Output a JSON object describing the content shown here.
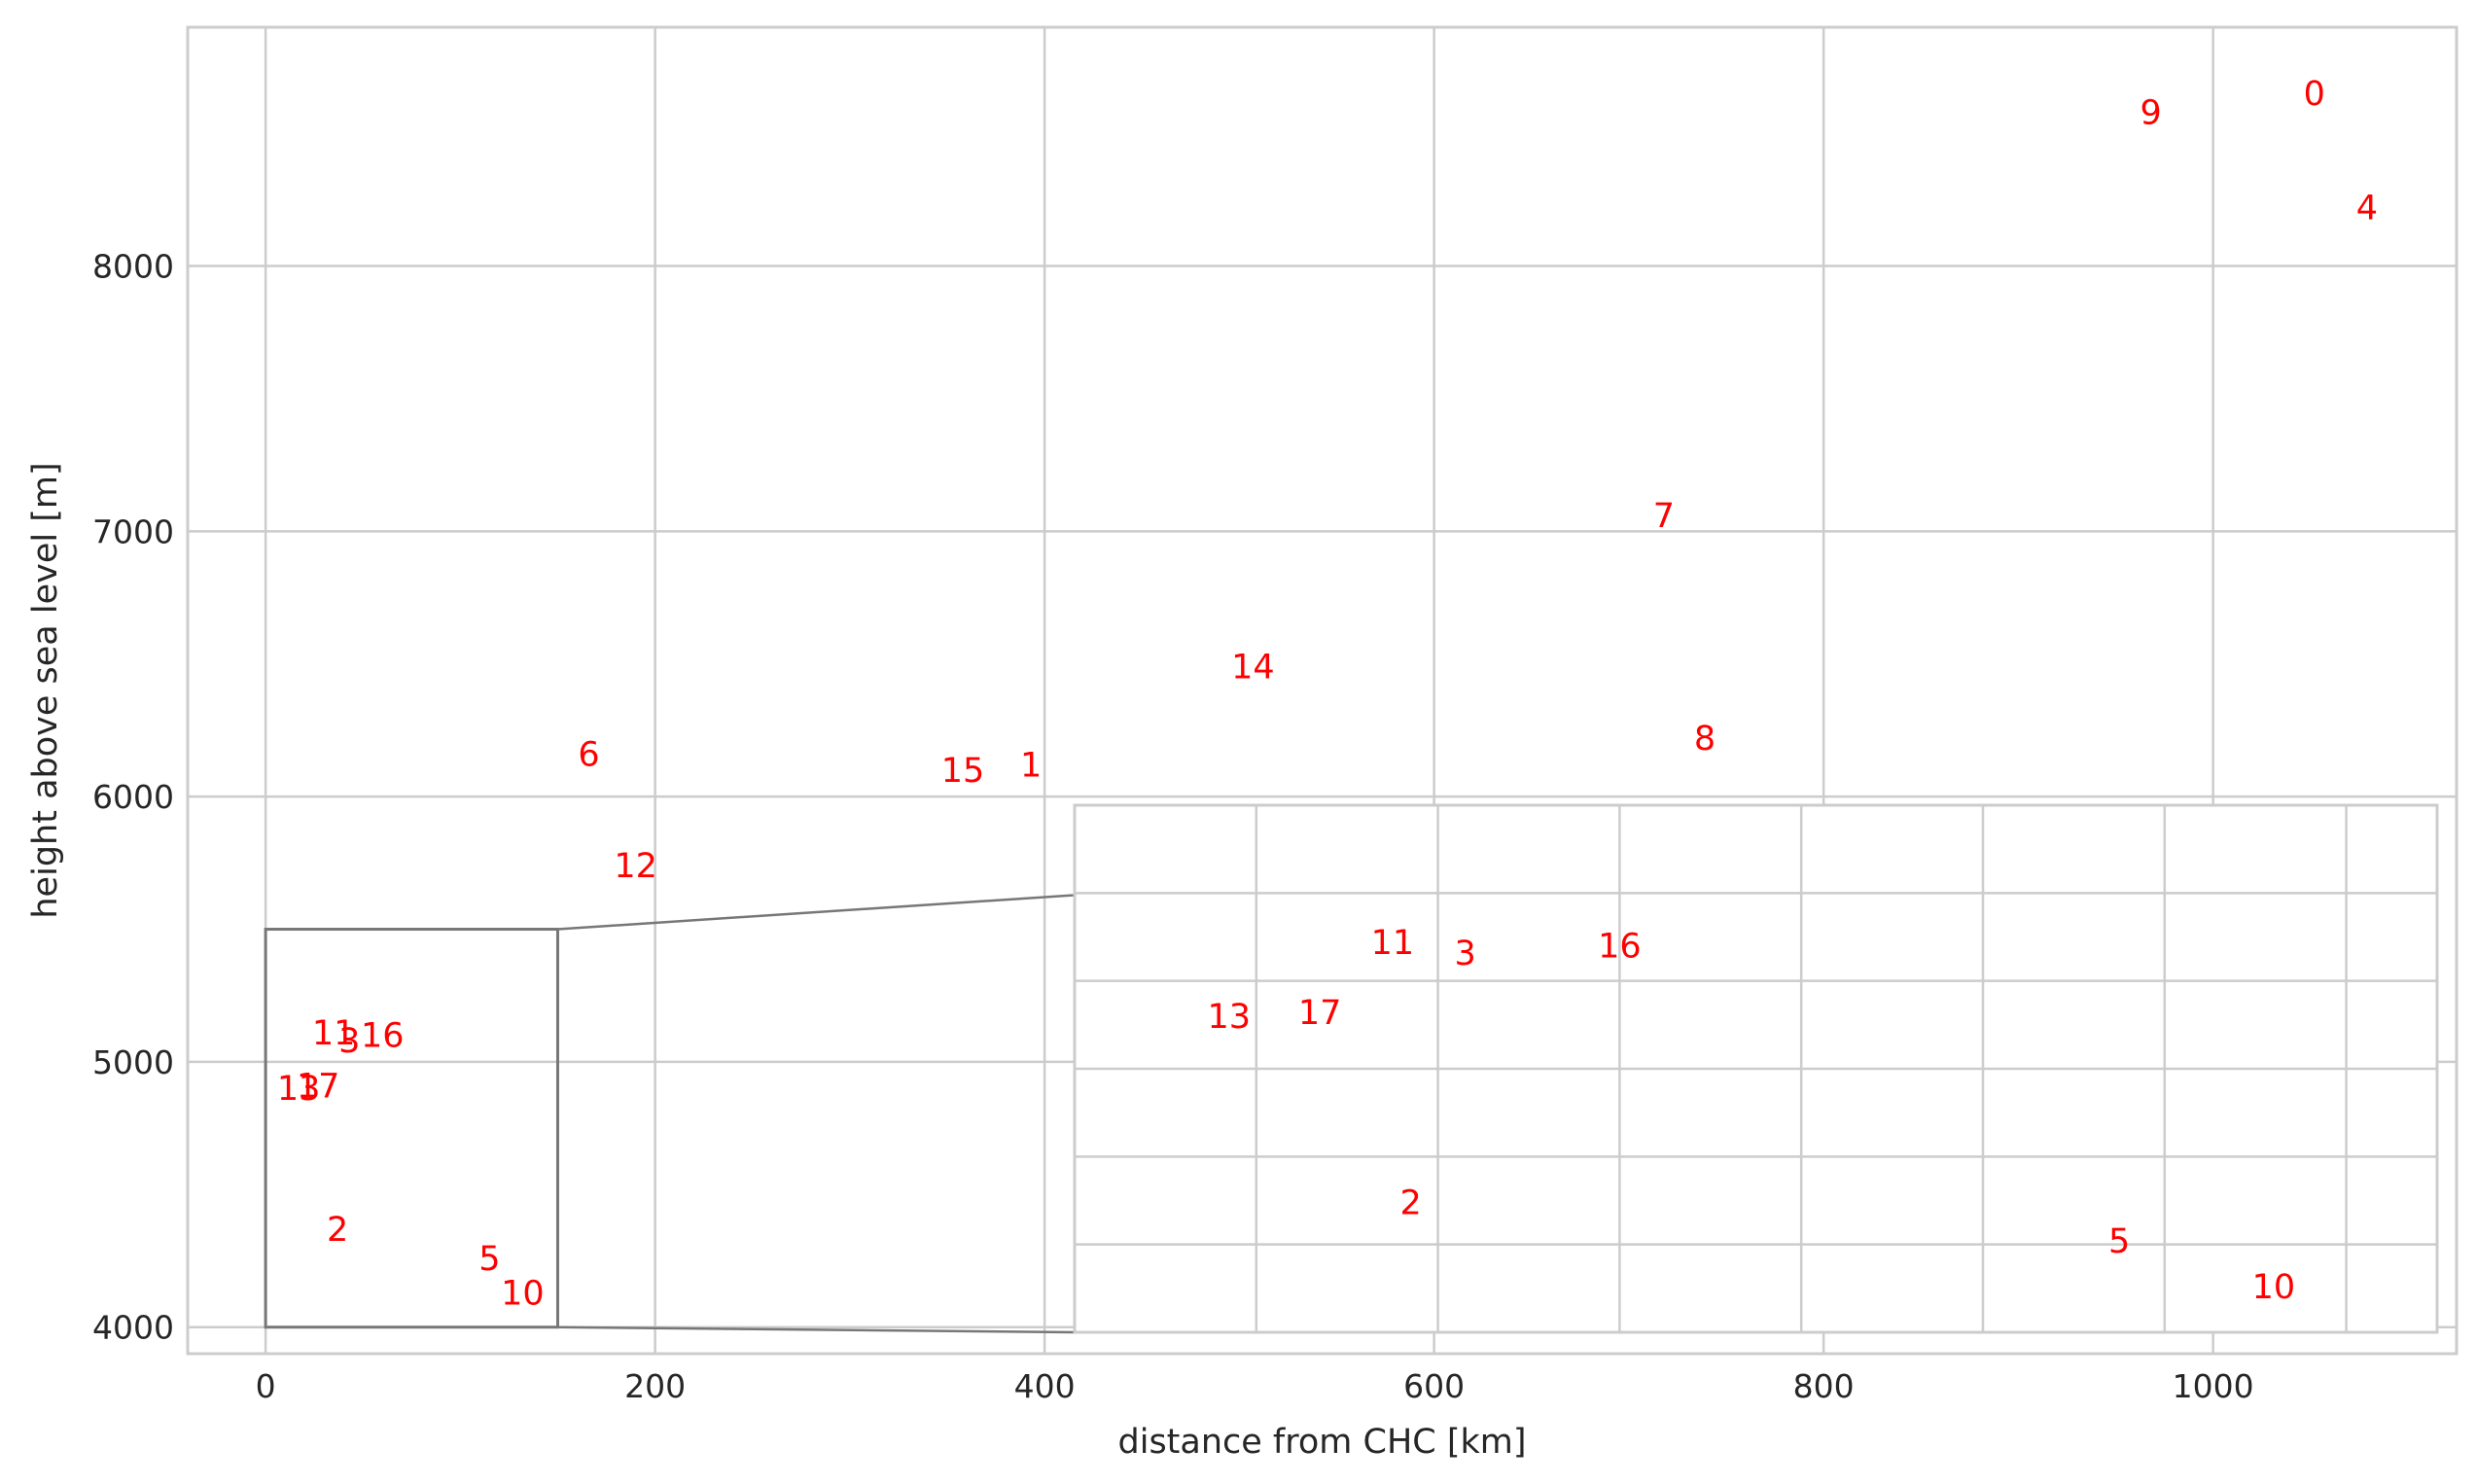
{
  "chart_data": {
    "type": "scatter",
    "title": "",
    "xlabel": "distance from CHC [km]",
    "ylabel": "height above sea level [m]",
    "xlim": [
      -40,
      1125
    ],
    "ylim": [
      3900,
      8900
    ],
    "xticks": [
      0,
      200,
      400,
      600,
      800,
      1000
    ],
    "yticks": [
      4000,
      5000,
      6000,
      7000,
      8000
    ],
    "grid": true,
    "marker": "text-labels",
    "label_color": "#ff0000",
    "points": [
      {
        "label": "0",
        "x": 1052,
        "y": 8650
      },
      {
        "label": "1",
        "x": 393,
        "y": 6120
      },
      {
        "label": "2",
        "x": 37,
        "y": 4370
      },
      {
        "label": "3",
        "x": 43,
        "y": 5080
      },
      {
        "label": "4",
        "x": 1079,
        "y": 8220
      },
      {
        "label": "5",
        "x": 115,
        "y": 4260
      },
      {
        "label": "6",
        "x": 166,
        "y": 6160
      },
      {
        "label": "7",
        "x": 718,
        "y": 7060
      },
      {
        "label": "8",
        "x": 739,
        "y": 6220
      },
      {
        "label": "9",
        "x": 968,
        "y": 8580
      },
      {
        "label": "10",
        "x": 132,
        "y": 4130
      },
      {
        "label": "11",
        "x": 35,
        "y": 5110
      },
      {
        "label": "12",
        "x": 190,
        "y": 5740
      },
      {
        "label": "13",
        "x": 17,
        "y": 4900
      },
      {
        "label": "14",
        "x": 507,
        "y": 6490
      },
      {
        "label": "15",
        "x": 358,
        "y": 6100
      },
      {
        "label": "16",
        "x": 60,
        "y": 5100
      },
      {
        "label": "17",
        "x": 27,
        "y": 4910
      }
    ],
    "inset": {
      "xlim": [
        0,
        150
      ],
      "ylim": [
        4000,
        5500
      ],
      "grid": true,
      "ticks_visible": false
    }
  }
}
